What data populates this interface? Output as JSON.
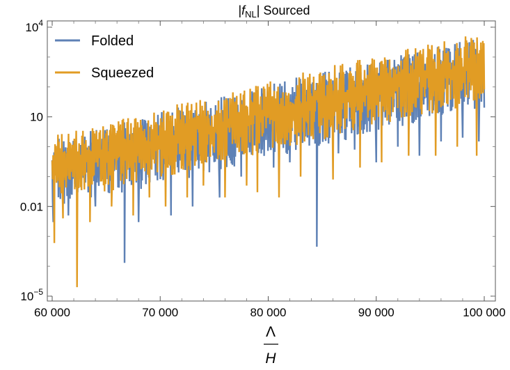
{
  "chart_data": {
    "type": "line",
    "title": "|f_NL| Sourced",
    "title_parts": {
      "open": "|",
      "f": "f",
      "sub": "NL",
      "close": "| Sourced"
    },
    "xlabel": "Λ/H",
    "xlabel_parts": {
      "numerator": "Λ",
      "denominator": "H"
    },
    "ylabel": "",
    "x_scale": "linear",
    "y_scale": "log",
    "xlim": [
      60000,
      100000
    ],
    "ylim": [
      1e-05,
      20000
    ],
    "x_ticks": [
      {
        "value": 60000,
        "label": "60 000"
      },
      {
        "value": 70000,
        "label": "70 000"
      },
      {
        "value": 80000,
        "label": "80 000"
      },
      {
        "value": 90000,
        "label": "90 000"
      },
      {
        "value": 100000,
        "label": "100 000"
      }
    ],
    "y_ticks": [
      {
        "value": 1e-05,
        "base": "10",
        "exp": "−5"
      },
      {
        "value": 0.01,
        "base": "0.01",
        "exp": ""
      },
      {
        "value": 10,
        "base": "10",
        "exp": ""
      },
      {
        "value": 10000,
        "base": "10",
        "exp": "4"
      }
    ],
    "legend_position": "top-left",
    "grid": false,
    "series": [
      {
        "name": "Folded",
        "color": "#5E81B5",
        "upper_envelope": [
          [
            60000,
            2
          ],
          [
            65000,
            5
          ],
          [
            70000,
            15
          ],
          [
            75000,
            40
          ],
          [
            80000,
            120
          ],
          [
            85000,
            350
          ],
          [
            90000,
            800
          ],
          [
            95000,
            2000
          ],
          [
            100000,
            6000
          ]
        ],
        "lower_envelope": [
          [
            60000,
            0.01
          ],
          [
            65000,
            0.02
          ],
          [
            70000,
            0.05
          ],
          [
            75000,
            0.15
          ],
          [
            80000,
            0.4
          ],
          [
            85000,
            1.0
          ],
          [
            90000,
            3
          ],
          [
            95000,
            8
          ],
          [
            100000,
            20
          ]
        ],
        "minima": [
          [
            60100,
            0.003
          ],
          [
            61500,
            0.005
          ],
          [
            64000,
            0.01
          ],
          [
            66700,
            0.00013
          ],
          [
            68000,
            0.003
          ],
          [
            71000,
            0.005
          ],
          [
            73000,
            0.01
          ],
          [
            75500,
            0.02
          ],
          [
            77500,
            0.1
          ],
          [
            80500,
            0.2
          ],
          [
            82000,
            0.3
          ],
          [
            84500,
            0.00045
          ],
          [
            86500,
            0.6
          ],
          [
            88000,
            0.8
          ],
          [
            90000,
            0.3
          ],
          [
            92000,
            1
          ],
          [
            94000,
            0.5
          ],
          [
            96000,
            1.5
          ],
          [
            98000,
            2
          ],
          [
            99500,
            1.5
          ]
        ]
      },
      {
        "name": "Squeezed",
        "color": "#E19C24",
        "upper_envelope": [
          [
            60000,
            2.5
          ],
          [
            65000,
            6
          ],
          [
            70000,
            20
          ],
          [
            75000,
            50
          ],
          [
            80000,
            150
          ],
          [
            85000,
            450
          ],
          [
            90000,
            1100
          ],
          [
            95000,
            2800
          ],
          [
            100000,
            7500
          ]
        ],
        "lower_envelope": [
          [
            60000,
            0.02
          ],
          [
            65000,
            0.03
          ],
          [
            70000,
            0.08
          ],
          [
            75000,
            0.25
          ],
          [
            80000,
            0.6
          ],
          [
            85000,
            1.5
          ],
          [
            90000,
            5
          ],
          [
            95000,
            12
          ],
          [
            100000,
            30
          ]
        ],
        "minima": [
          [
            60200,
            0.0006
          ],
          [
            61000,
            0.004
          ],
          [
            62300,
            2e-05
          ],
          [
            63500,
            0.003
          ],
          [
            65500,
            0.01
          ],
          [
            67500,
            0.005
          ],
          [
            69000,
            0.02
          ],
          [
            70500,
            0.01
          ],
          [
            72500,
            0.02
          ],
          [
            74000,
            0.05
          ],
          [
            76000,
            0.02
          ],
          [
            78000,
            0.05
          ],
          [
            79000,
            0.03
          ],
          [
            81000,
            0.02
          ],
          [
            83000,
            0.1
          ],
          [
            86000,
            0.08
          ],
          [
            88500,
            0.2
          ],
          [
            90500,
            0.3
          ],
          [
            93000,
            0.5
          ],
          [
            95500,
            0.5
          ],
          [
            97500,
            1
          ],
          [
            99300,
            0.5
          ]
        ]
      }
    ]
  }
}
